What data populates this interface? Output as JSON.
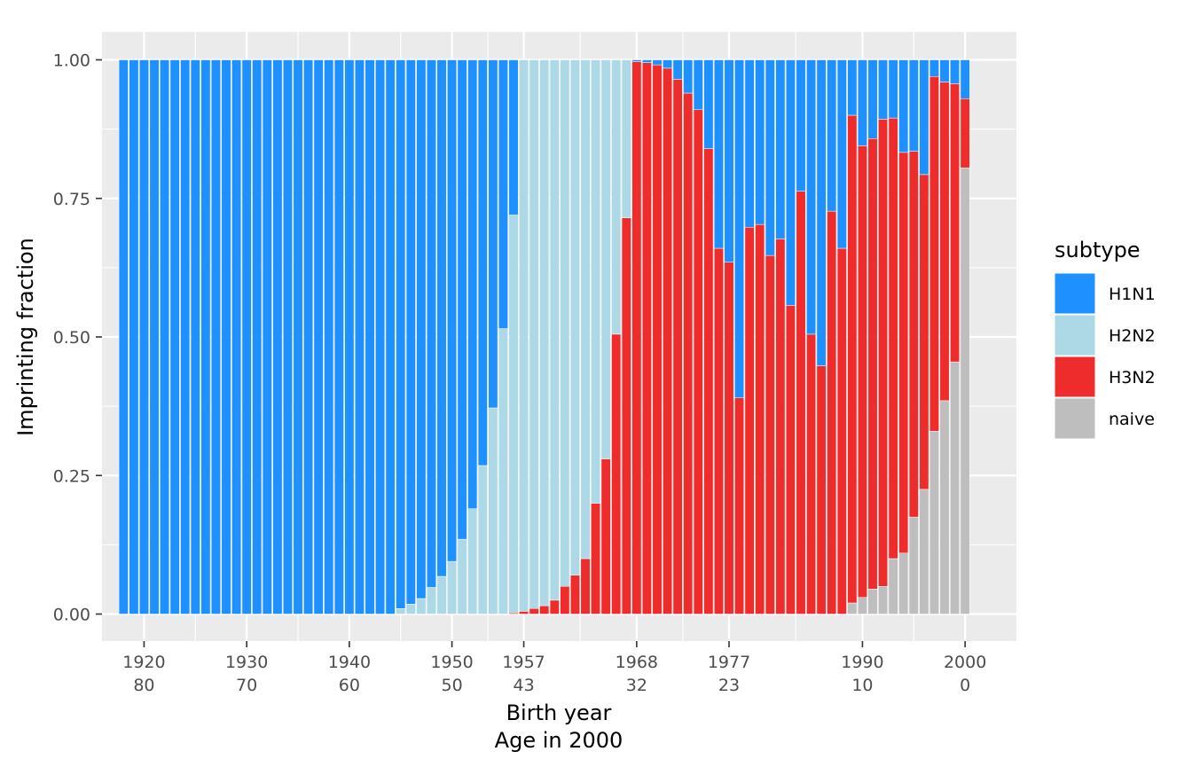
{
  "chart_data": {
    "type": "bar",
    "stacked": true,
    "xlabel": "Birth year",
    "xlabel2": "Age in 2000",
    "ylabel": "Imprinting fraction",
    "ylim": [
      0,
      1
    ],
    "xlim": [
      1915.9,
      2005.0
    ],
    "yticks": [
      "0.00",
      "0.25",
      "0.50",
      "0.75",
      "1.00"
    ],
    "yticks_values": [
      0,
      0.25,
      0.5,
      0.75,
      1.0
    ],
    "xticks": [
      {
        "year": 1920,
        "label": "1920",
        "age": "80"
      },
      {
        "year": 1930,
        "label": "1930",
        "age": "70"
      },
      {
        "year": 1940,
        "label": "1940",
        "age": "60"
      },
      {
        "year": 1950,
        "label": "1950",
        "age": "50"
      },
      {
        "year": 1957,
        "label": "1957",
        "age": "43"
      },
      {
        "year": 1968,
        "label": "1968",
        "age": "32"
      },
      {
        "year": 1977,
        "label": "1977",
        "age": "23"
      },
      {
        "year": 1990,
        "label": "1990",
        "age": "10"
      },
      {
        "year": 2000,
        "label": "2000",
        "age": "0"
      }
    ],
    "grid": true,
    "legend_position": "right",
    "legend": {
      "title": "subtype",
      "items": [
        {
          "name": "H1N1",
          "color": "#1E90FF"
        },
        {
          "name": "H2N2",
          "color": "#ADD8E6"
        },
        {
          "name": "H3N2",
          "color": "#EE2C2C"
        },
        {
          "name": "naive",
          "color": "#BEBEBE"
        }
      ]
    },
    "stack_order": [
      "naive",
      "H3N2",
      "H2N2",
      "H1N1"
    ],
    "x": [
      1918,
      1919,
      1920,
      1921,
      1922,
      1923,
      1924,
      1925,
      1926,
      1927,
      1928,
      1929,
      1930,
      1931,
      1932,
      1933,
      1934,
      1935,
      1936,
      1937,
      1938,
      1939,
      1940,
      1941,
      1942,
      1943,
      1944,
      1945,
      1946,
      1947,
      1948,
      1949,
      1950,
      1951,
      1952,
      1953,
      1954,
      1955,
      1956,
      1957,
      1958,
      1959,
      1960,
      1961,
      1962,
      1963,
      1964,
      1965,
      1966,
      1967,
      1968,
      1969,
      1970,
      1971,
      1972,
      1973,
      1974,
      1975,
      1976,
      1977,
      1978,
      1979,
      1980,
      1981,
      1982,
      1983,
      1984,
      1985,
      1986,
      1987,
      1988,
      1989,
      1990,
      1991,
      1992,
      1993,
      1994,
      1995,
      1996,
      1997,
      1998,
      1999,
      2000
    ],
    "series": [
      {
        "name": "naive",
        "values": [
          0,
          0,
          0,
          0,
          0,
          0,
          0,
          0,
          0,
          0,
          0,
          0,
          0,
          0,
          0,
          0,
          0,
          0,
          0,
          0,
          0,
          0,
          0,
          0,
          0,
          0,
          0,
          0,
          0,
          0,
          0,
          0,
          0,
          0,
          0,
          0,
          0,
          0,
          0,
          0,
          0,
          0,
          0,
          0,
          0,
          0,
          0,
          0,
          0,
          0,
          0,
          0,
          0,
          0,
          0,
          0,
          0,
          0,
          0,
          0,
          0,
          0,
          0,
          0,
          0,
          0,
          0,
          0,
          0,
          0,
          0,
          0.02,
          0.03,
          0.045,
          0.05,
          0.1,
          0.11,
          0.175,
          0.225,
          0.33,
          0.385,
          0.455,
          0.805
        ]
      },
      {
        "name": "H3N2",
        "values": [
          0,
          0,
          0,
          0,
          0,
          0,
          0,
          0,
          0,
          0,
          0,
          0,
          0,
          0,
          0,
          0,
          0,
          0,
          0,
          0,
          0,
          0,
          0,
          0,
          0,
          0,
          0,
          0,
          0,
          0,
          0,
          0,
          0,
          0,
          0,
          0,
          0,
          0,
          0.002,
          0.005,
          0.01,
          0.015,
          0.025,
          0.05,
          0.07,
          0.1,
          0.2,
          0.28,
          0.505,
          0.715,
          0.997,
          0.995,
          0.991,
          0.985,
          0.965,
          0.94,
          0.91,
          0.84,
          0.66,
          0.635,
          0.39,
          0.698,
          0.703,
          0.647,
          0.677,
          0.557,
          0.763,
          0.505,
          0.448,
          0.727,
          0.66,
          0.88,
          0.815,
          0.813,
          0.843,
          0.795,
          0.723,
          0.66,
          0.568,
          0.64,
          0.575,
          0.502,
          0.125
        ]
      },
      {
        "name": "H2N2",
        "values": [
          0,
          0,
          0,
          0,
          0,
          0,
          0,
          0,
          0,
          0,
          0,
          0,
          0,
          0,
          0,
          0,
          0,
          0,
          0,
          0,
          0,
          0,
          0,
          0,
          0,
          0,
          0,
          0.01,
          0.018,
          0.028,
          0.048,
          0.068,
          0.095,
          0.135,
          0.19,
          0.268,
          0.372,
          0.515,
          0.718,
          0.995,
          0.99,
          0.985,
          0.975,
          0.95,
          0.93,
          0.9,
          0.8,
          0.72,
          0.495,
          0.285,
          0,
          0,
          0,
          0,
          0,
          0,
          0,
          0,
          0,
          0,
          0,
          0,
          0,
          0,
          0,
          0,
          0,
          0,
          0,
          0,
          0,
          0,
          0,
          0,
          0,
          0,
          0,
          0,
          0,
          0,
          0,
          0,
          0
        ]
      },
      {
        "name": "H1N1",
        "values": [
          1,
          1,
          1,
          1,
          1,
          1,
          1,
          1,
          1,
          1,
          1,
          1,
          1,
          1,
          1,
          1,
          1,
          1,
          1,
          1,
          1,
          1,
          1,
          1,
          1,
          1,
          1,
          0.99,
          0.982,
          0.972,
          0.952,
          0.932,
          0.905,
          0.865,
          0.81,
          0.732,
          0.628,
          0.485,
          0.28,
          0,
          0,
          0,
          0,
          0,
          0,
          0,
          0,
          0,
          0,
          0,
          0.003,
          0.005,
          0.009,
          0.015,
          0.035,
          0.06,
          0.09,
          0.16,
          0.34,
          0.365,
          0.61,
          0.302,
          0.297,
          0.353,
          0.323,
          0.443,
          0.237,
          0.495,
          0.552,
          0.273,
          0.34,
          0.1,
          0.155,
          0.142,
          0.107,
          0.105,
          0.167,
          0.165,
          0.207,
          0.03,
          0.04,
          0.043,
          0.07
        ]
      }
    ]
  }
}
